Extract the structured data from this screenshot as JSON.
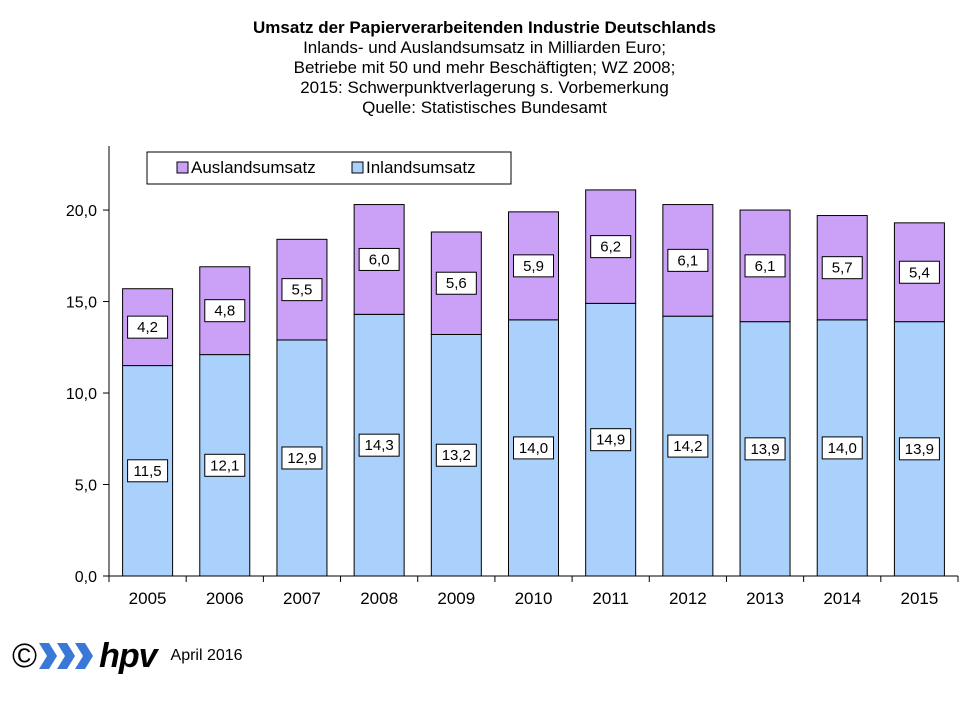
{
  "header": {
    "title": "Umsatz der Papierverarbeitenden Industrie Deutschlands",
    "subtitle_lines": [
      "Inlands- und Auslandsumsatz  in Milliarden Euro;",
      "Betriebe mit 50 und mehr  Beschäftigten; WZ 2008;",
      "2015: Schwerpunktverlagerung  s. Vorbemerkung",
      "Quelle:  Statistisches Bundesamt"
    ]
  },
  "chart_data": {
    "type": "bar",
    "stacked": true,
    "categories": [
      "2005",
      "2006",
      "2007",
      "2008",
      "2009",
      "2010",
      "2011",
      "2012",
      "2013",
      "2014",
      "2015"
    ],
    "series": [
      {
        "name": "Inlandsumsatz",
        "color": "#a9d1fb",
        "values": [
          11.5,
          12.1,
          12.9,
          14.3,
          13.2,
          14.0,
          14.9,
          14.2,
          13.9,
          14.0,
          13.9
        ],
        "labels": [
          "11,5",
          "12,1",
          "12,9",
          "14,3",
          "13,2",
          "14,0",
          "14,9",
          "14,2",
          "13,9",
          "14,0",
          "13,9"
        ]
      },
      {
        "name": "Auslandsumsatz",
        "color": "#cba0f7",
        "values": [
          4.2,
          4.8,
          5.5,
          6.0,
          5.6,
          5.9,
          6.2,
          6.1,
          6.1,
          5.7,
          5.4
        ],
        "labels": [
          "4,2",
          "4,8",
          "5,5",
          "6,0",
          "5,6",
          "5,9",
          "6,2",
          "6,1",
          "6,1",
          "5,7",
          "5,4"
        ]
      }
    ],
    "legend_order": [
      "Auslandsumsatz",
      "Inlandsumsatz"
    ],
    "legend_position": "top-left",
    "ylim": [
      0,
      23.5
    ],
    "yticks": [
      0,
      5,
      10,
      15,
      20
    ],
    "ytick_labels": [
      "0,0",
      "5,0",
      "10,0",
      "15,0",
      "20,0"
    ],
    "grid": false
  },
  "footer": {
    "copyright": "©",
    "brand": "hpv",
    "date": "April 2016"
  }
}
